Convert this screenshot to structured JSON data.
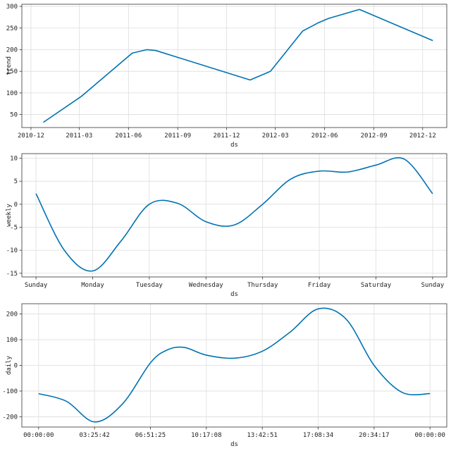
{
  "colors": {
    "line": "#0072b2",
    "grid": "#dddddd",
    "frame": "#333333"
  },
  "chart_data": [
    {
      "type": "line",
      "xlabel": "ds",
      "ylabel": "trend",
      "xlim": [
        "2010-11-14",
        "2013-01-15"
      ],
      "ylim": [
        20,
        305
      ],
      "grid": true,
      "x_ticks": [
        {
          "value": "2010-12-01",
          "label": "2010-12"
        },
        {
          "value": "2011-03-01",
          "label": "2011-03"
        },
        {
          "value": "2011-06-01",
          "label": "2011-06"
        },
        {
          "value": "2011-09-01",
          "label": "2011-09"
        },
        {
          "value": "2011-12-01",
          "label": "2011-12"
        },
        {
          "value": "2012-03-01",
          "label": "2012-03"
        },
        {
          "value": "2012-06-01",
          "label": "2012-06"
        },
        {
          "value": "2012-09-01",
          "label": "2012-09"
        },
        {
          "value": "2012-12-01",
          "label": "2012-12"
        }
      ],
      "y_ticks": [
        50,
        100,
        150,
        200,
        250,
        300
      ],
      "series": [
        {
          "x": [
            "2010-12-24",
            "2011-03-05",
            "2011-06-08",
            "2011-07-05",
            "2011-07-22",
            "2012-01-14",
            "2012-02-21",
            "2012-04-21",
            "2012-05-20",
            "2012-06-08",
            "2012-08-05",
            "2012-12-20"
          ],
          "y": [
            32,
            92,
            192,
            200,
            198,
            130,
            150,
            243,
            262,
            272,
            293,
            221
          ]
        }
      ]
    },
    {
      "type": "line",
      "xlabel": "ds",
      "ylabel": "weekly",
      "xlim": [
        -0.25,
        7.25
      ],
      "ylim": [
        -15.8,
        11
      ],
      "grid": true,
      "x_ticks": [
        {
          "value": 0,
          "label": "Sunday"
        },
        {
          "value": 1,
          "label": "Monday"
        },
        {
          "value": 2,
          "label": "Tuesday"
        },
        {
          "value": 3,
          "label": "Wednesday"
        },
        {
          "value": 4,
          "label": "Thursday"
        },
        {
          "value": 5,
          "label": "Friday"
        },
        {
          "value": 6,
          "label": "Saturday"
        },
        {
          "value": 7,
          "label": "Sunday"
        }
      ],
      "y_ticks": [
        -15,
        -10,
        -5,
        0,
        5,
        10
      ],
      "series": [
        {
          "x": [
            0,
            0.5,
            1,
            1.5,
            2,
            2.5,
            3,
            3.5,
            4,
            4.5,
            5,
            5.5,
            6,
            6.5,
            7
          ],
          "y": [
            2.3,
            -10,
            -14.5,
            -8,
            0,
            0.2,
            -3.8,
            -4.5,
            0,
            5.5,
            7.2,
            7.0,
            8.5,
            9.8,
            2.3
          ]
        }
      ]
    },
    {
      "type": "line",
      "xlabel": "ds",
      "ylabel": "daily",
      "xlim": [
        -0.3,
        7.3
      ],
      "ylim": [
        -240,
        240
      ],
      "grid": true,
      "x_ticks": [
        {
          "value": 0,
          "label": "00:00:00"
        },
        {
          "value": 1,
          "label": "03:25:42"
        },
        {
          "value": 2,
          "label": "06:51:25"
        },
        {
          "value": 3,
          "label": "10:17:08"
        },
        {
          "value": 4,
          "label": "13:42:51"
        },
        {
          "value": 5,
          "label": "17:08:34"
        },
        {
          "value": 6,
          "label": "20:34:17"
        },
        {
          "value": 7,
          "label": "00:00:00"
        }
      ],
      "y_ticks": [
        -200,
        -100,
        0,
        100,
        200
      ],
      "series": [
        {
          "x": [
            0,
            0.5,
            1,
            1.5,
            2,
            2.3,
            2.6,
            3,
            3.5,
            4,
            4.5,
            5,
            5.5,
            6,
            6.5,
            7
          ],
          "y": [
            -110,
            -140,
            -220,
            -150,
            10,
            60,
            70,
            40,
            28,
            55,
            130,
            220,
            180,
            0,
            -105,
            -110
          ]
        }
      ]
    }
  ]
}
